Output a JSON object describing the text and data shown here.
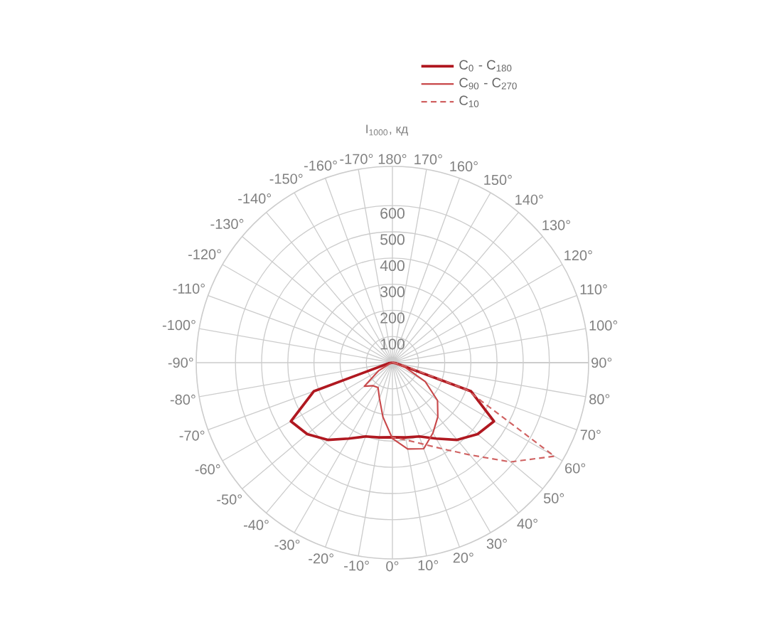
{
  "chart_data": {
    "type": "radar",
    "ylabel": "I$_{1000}$, кд",
    "categories": [
      "180°",
      "170°",
      "160°",
      "150°",
      "140°",
      "130°",
      "120°",
      "110°",
      "100°",
      "90°",
      "80°",
      "70°",
      "60°",
      "50°",
      "40°",
      "30°",
      "20°",
      "10°",
      "0°",
      "-10°",
      "-20°",
      "-30°",
      "-40°",
      "-50°",
      "-60°",
      "-70°",
      "-80°",
      "-90°",
      "-100°",
      "-110°",
      "-120°",
      "-130°",
      "-140°",
      "-150°",
      "-160°",
      "-170°"
    ],
    "ylim": [
      0,
      750
    ],
    "yticks": [
      100,
      200,
      300,
      400,
      500,
      600
    ],
    "grid": true,
    "legend": "top",
    "marker": "none",
    "series": [
      {
        "name": "C$_{0}$ - C$_{180}$",
        "color": "#b01820",
        "line_style": "solid",
        "values": [
          0,
          0,
          0,
          0,
          0,
          0,
          0,
          0,
          0,
          0,
          15,
          320,
          448,
          425,
          385,
          335,
          300,
          290,
          285,
          290,
          300,
          335,
          385,
          425,
          448,
          320,
          15,
          0,
          0,
          0,
          0,
          0,
          0,
          0,
          0,
          0
        ]
      },
      {
        "name": "C$_{90}$ - C$_{270}$",
        "color": "#c8484a",
        "line_style": "solid",
        "values": [
          0,
          0,
          0,
          0,
          0,
          0,
          0,
          0,
          0,
          0,
          10,
          52,
          145,
          225,
          270,
          310,
          350,
          335,
          290,
          210,
          145,
          110,
          115,
          140,
          60,
          10,
          0,
          0,
          0,
          0,
          0,
          0,
          0,
          0,
          0,
          0
        ]
      },
      {
        "name": "C$_{10}$",
        "color": "#d06262",
        "line_style": "dashed",
        "values": [
          0,
          0,
          0,
          0,
          0,
          0,
          0,
          0,
          0,
          0,
          30,
          300,
          715,
          590,
          460,
          380,
          330,
          300,
          285,
          null,
          null,
          null,
          null,
          null,
          null,
          null,
          null,
          null,
          null,
          null,
          null,
          null,
          null,
          null,
          null,
          null
        ]
      }
    ]
  }
}
